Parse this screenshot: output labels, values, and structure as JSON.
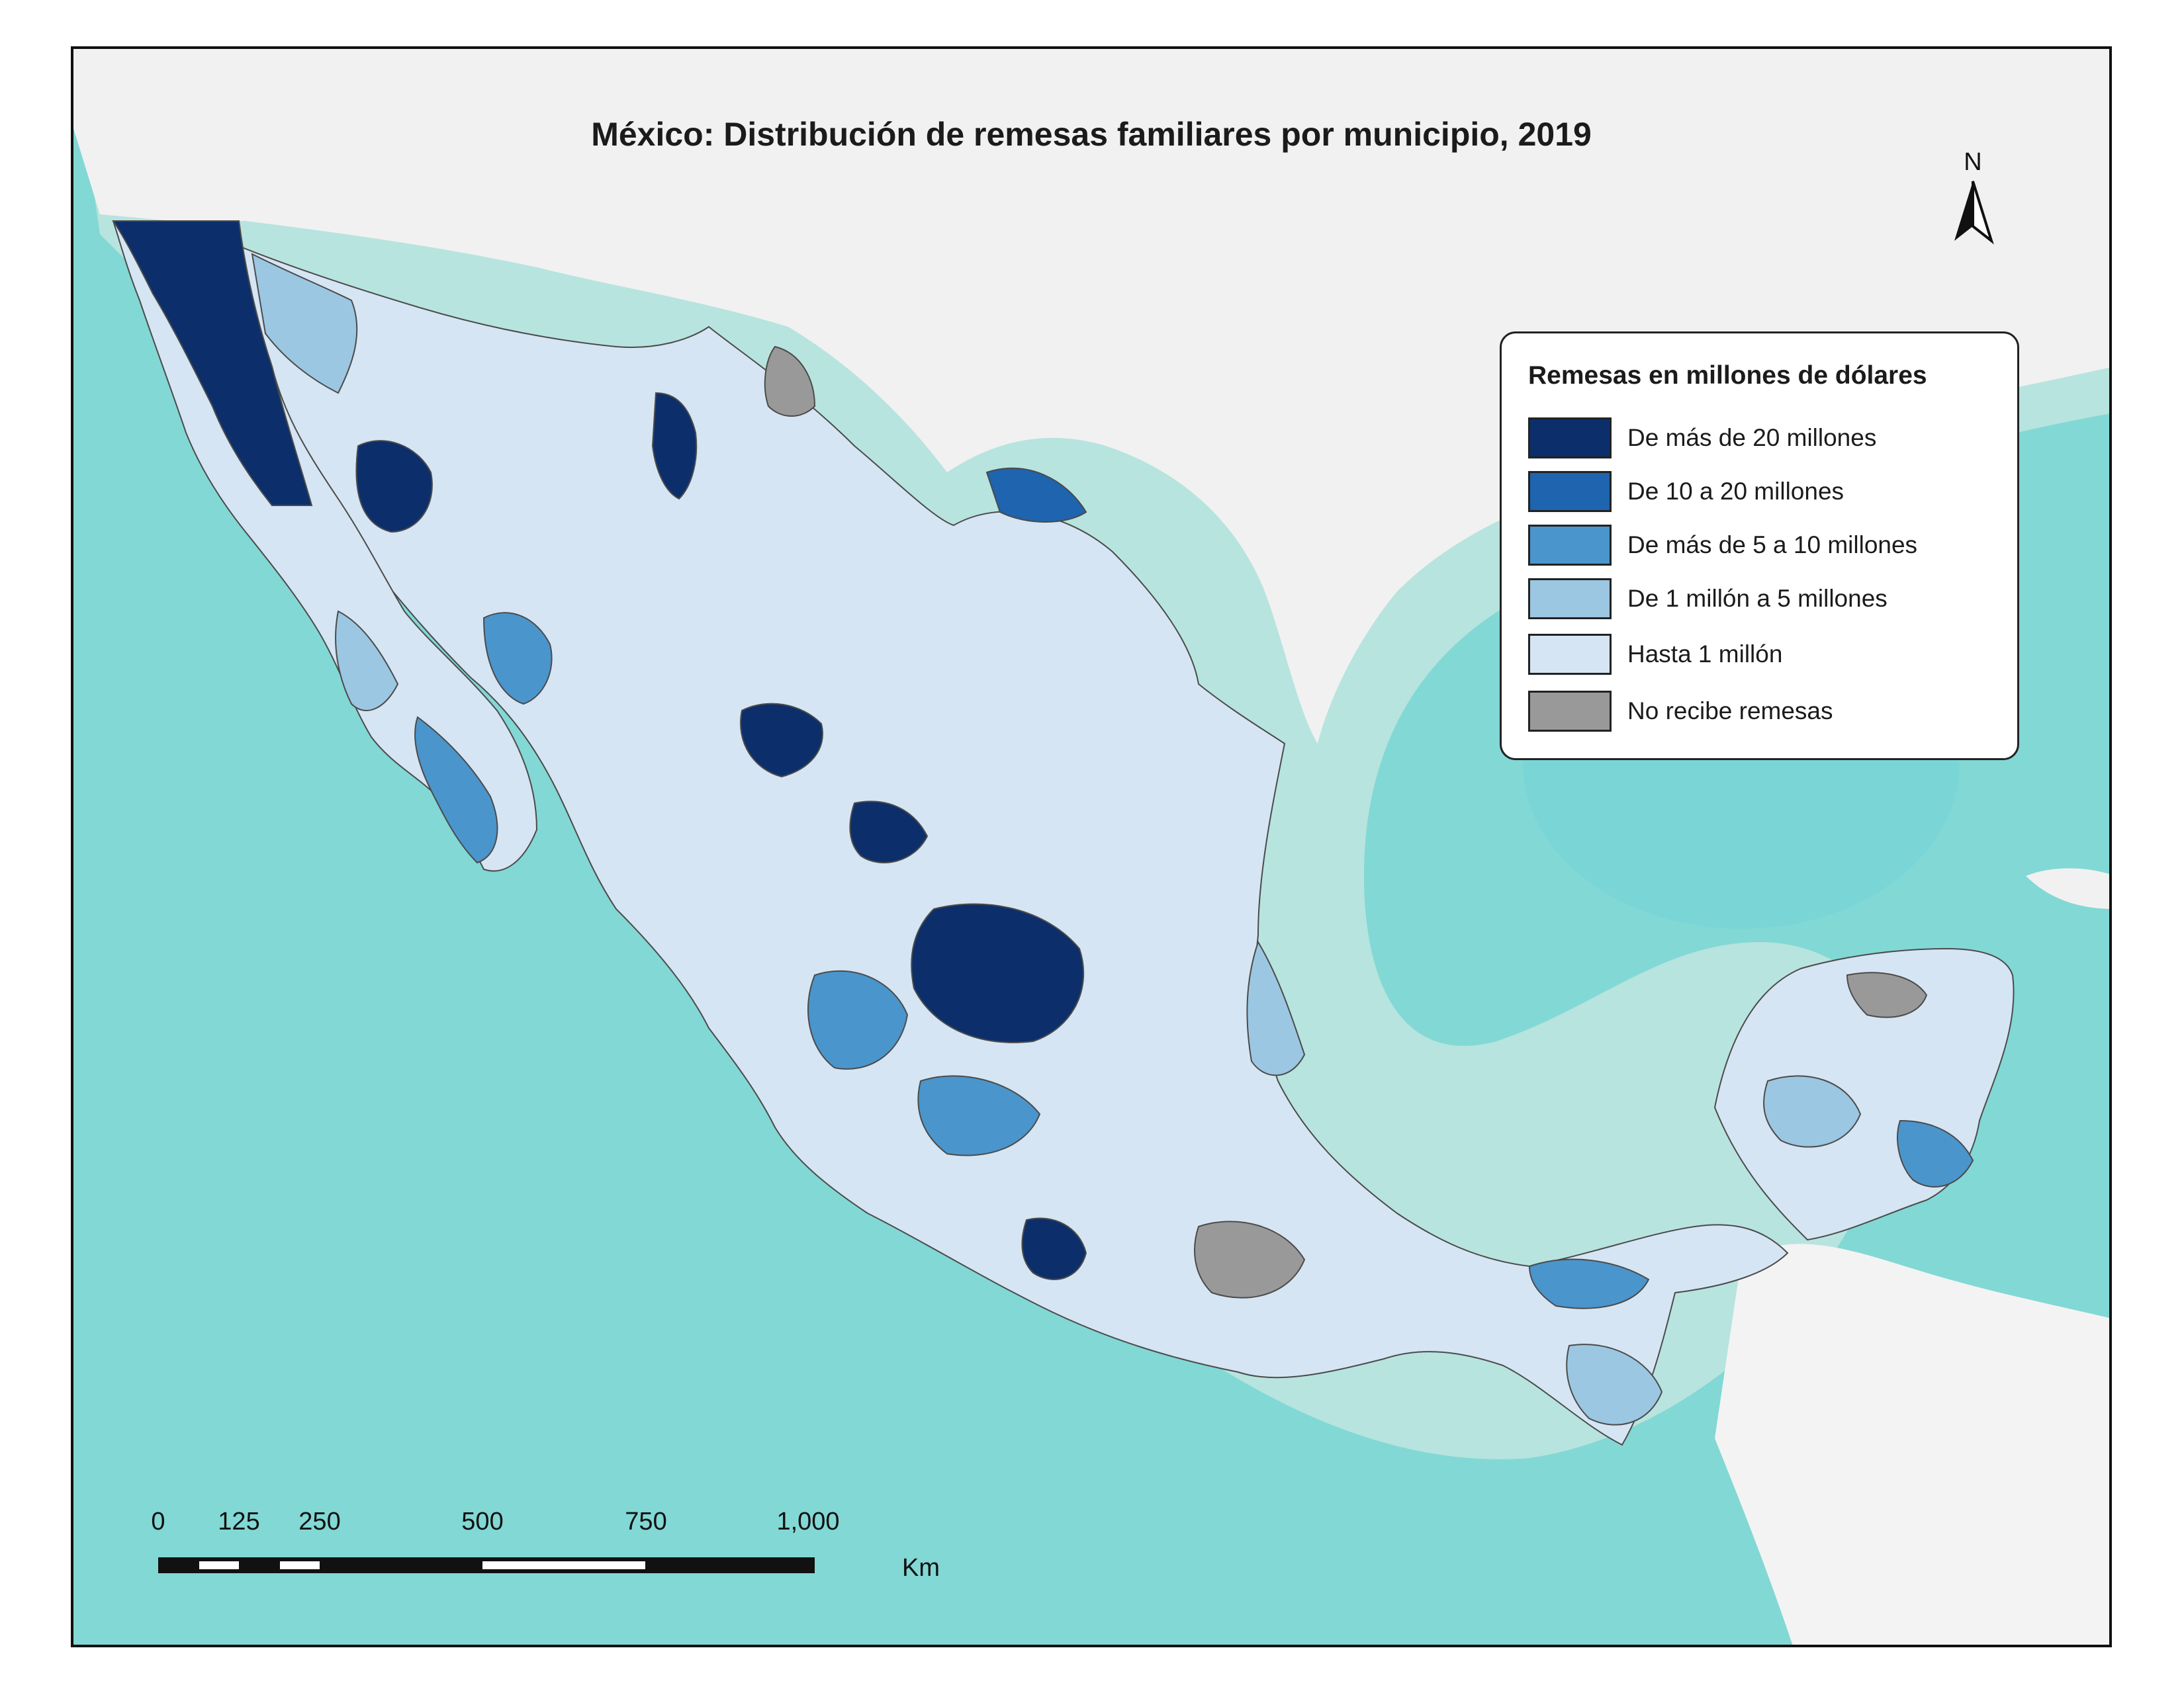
{
  "title": "México: Distribución de remesas familiares por municipio, 2019",
  "legend": {
    "title": "Remesas en millones de dólares",
    "items": [
      {
        "label": "De más de 20 millones",
        "color": "#0c2f6b"
      },
      {
        "label": "De 10 a 20 millones",
        "color": "#1e64ae"
      },
      {
        "label": "De más de 5 a 10 millones",
        "color": "#4a95cc"
      },
      {
        "label": "De 1 millón a 5 millones",
        "color": "#9bc7e2"
      },
      {
        "label": "Hasta 1 millón",
        "color": "#d6e5f3"
      },
      {
        "label": "No recibe remesas",
        "color": "#999999"
      }
    ]
  },
  "north_arrow": {
    "label": "N"
  },
  "scale_bar": {
    "ticks": [
      "0",
      "125",
      "250",
      "500",
      "750",
      "1,000"
    ],
    "unit": "Km"
  },
  "colors": {
    "ocean_deep": "#7fd6d3",
    "ocean_shallow": "#b9e5df",
    "land_background": "#f1f1f1",
    "border": "#333333"
  }
}
